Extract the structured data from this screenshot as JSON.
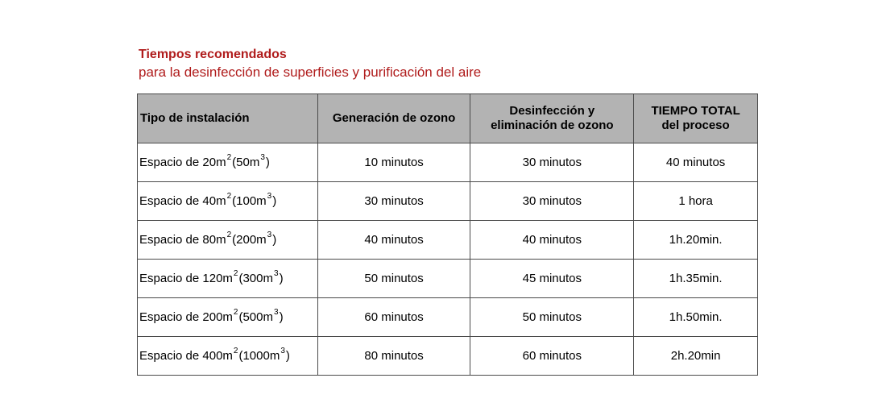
{
  "heading": {
    "title": "Tiempos recomendados",
    "subtitle": "para la desinfección de superficies y purificación del aire"
  },
  "table": {
    "headers": [
      [
        "Tipo de instalación"
      ],
      [
        "Generación de ozono"
      ],
      [
        "Desinfección y",
        "eliminación de ozono"
      ],
      [
        "TIEMPO TOTAL",
        "del proceso"
      ]
    ],
    "rows": [
      {
        "space": {
          "pre": "Espacio de 20m",
          "sup1": "2",
          "mid": "(50m",
          "sup2": "3",
          "post": ")"
        },
        "generation": "10 minutos",
        "disinfection": "30 minutos",
        "total": "40 minutos"
      },
      {
        "space": {
          "pre": "Espacio de 40m",
          "sup1": "2",
          "mid": "(100m",
          "sup2": "3",
          "post": ")"
        },
        "generation": "30 minutos",
        "disinfection": "30 minutos",
        "total": "1 hora"
      },
      {
        "space": {
          "pre": "Espacio de 80m",
          "sup1": "2",
          "mid": "(200m",
          "sup2": "3",
          "post": ")"
        },
        "generation": "40 minutos",
        "disinfection": "40 minutos",
        "total": "1h.20min."
      },
      {
        "space": {
          "pre": "Espacio de 120m",
          "sup1": "2",
          "mid": "(300m",
          "sup2": "3",
          "post": ")"
        },
        "generation": "50 minutos",
        "disinfection": "45 minutos",
        "total": "1h.35min."
      },
      {
        "space": {
          "pre": "Espacio de 200m",
          "sup1": "2",
          "mid": "(500m",
          "sup2": "3",
          "post": ")"
        },
        "generation": "60 minutos",
        "disinfection": "50 minutos",
        "total": "1h.50min."
      },
      {
        "space": {
          "pre": "Espacio de 400m",
          "sup1": "2",
          "mid": "(1000m",
          "sup2": "3",
          "post": ")"
        },
        "generation": "80 minutos",
        "disinfection": "60 minutos",
        "total": "2h.20min"
      }
    ]
  }
}
